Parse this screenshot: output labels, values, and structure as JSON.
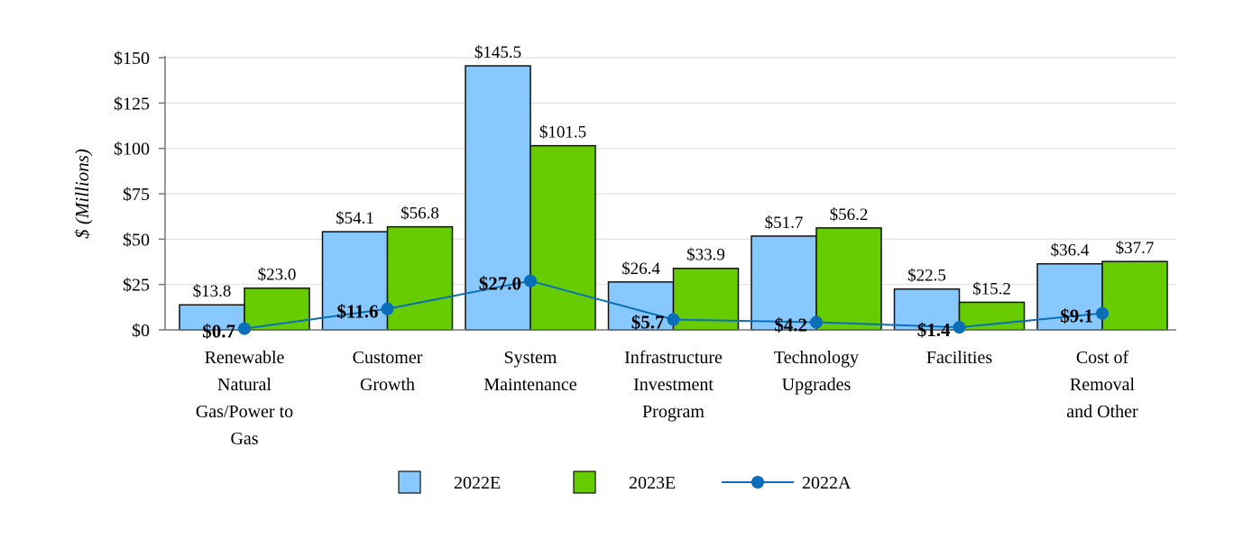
{
  "colors": {
    "bar_2022E": "#87c8ff",
    "bar_2023E": "#66cc00",
    "line_2022A": "#0a6fb8",
    "grid": "#e6e6e6",
    "axis": "#777777",
    "bar_stroke": "#111111"
  },
  "chart_data": {
    "type": "bar",
    "ylabel": "$ (Millions)",
    "ylim": [
      0,
      150
    ],
    "yticks": [
      0,
      25,
      50,
      75,
      100,
      125,
      150
    ],
    "ytick_labels": [
      "$0",
      "$25",
      "$50",
      "$75",
      "$100",
      "$125",
      "$150"
    ],
    "grid": true,
    "legend_position": "bottom",
    "categories": [
      [
        "Renewable",
        "Natural",
        "Gas/Power to",
        "Gas"
      ],
      [
        "Customer",
        "Growth"
      ],
      [
        "System",
        "Maintenance"
      ],
      [
        "Infrastructure",
        "Investment",
        "Program"
      ],
      [
        "Technology",
        "Upgrades"
      ],
      [
        "Facilities"
      ],
      [
        "Cost of",
        "Removal",
        "and Other"
      ]
    ],
    "series": [
      {
        "name": "2022E",
        "type": "bar",
        "values": [
          13.8,
          54.1,
          145.5,
          26.4,
          51.7,
          22.5,
          36.4
        ],
        "labels": [
          "$13.8",
          "$54.1",
          "$145.5",
          "$26.4",
          "$51.7",
          "$22.5",
          "$36.4"
        ]
      },
      {
        "name": "2023E",
        "type": "bar",
        "values": [
          23.0,
          56.8,
          101.5,
          33.9,
          56.2,
          15.2,
          37.7
        ],
        "labels": [
          "$23.0",
          "$56.8",
          "$101.5",
          "$33.9",
          "$56.2",
          "$15.2",
          "$37.7"
        ]
      },
      {
        "name": "2022A",
        "type": "line",
        "values": [
          0.7,
          11.6,
          27.0,
          5.7,
          4.2,
          1.4,
          9.1
        ],
        "labels": [
          "$0.7",
          "$11.6",
          "$27.0",
          "$5.7",
          "$4.2",
          "$1.4",
          "$9.1"
        ]
      }
    ]
  }
}
